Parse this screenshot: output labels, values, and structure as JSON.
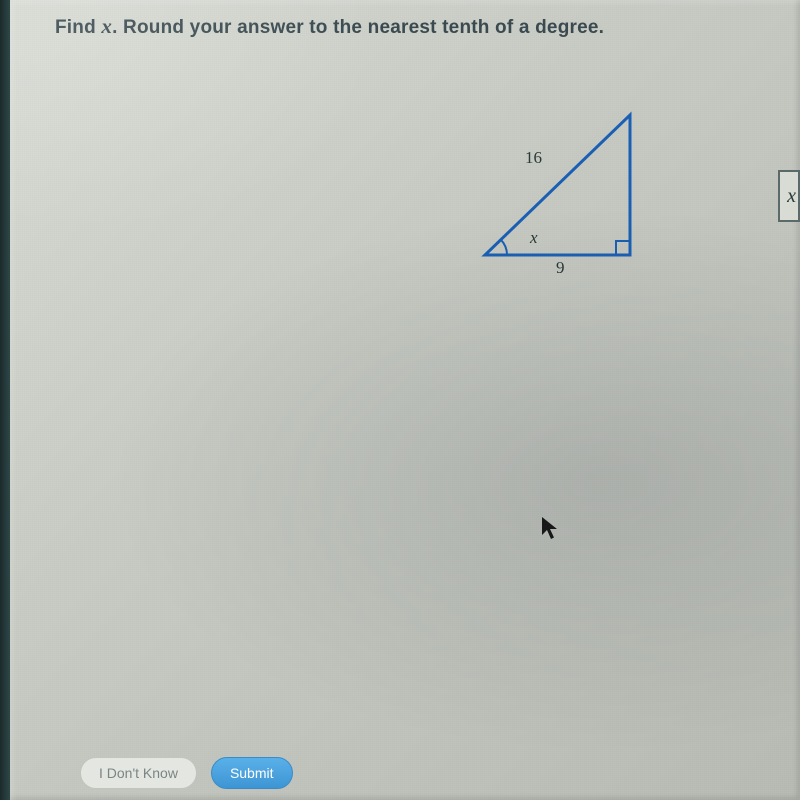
{
  "question": {
    "prefix": "Find ",
    "variable": "x",
    "suffix": ". Round your answer to the nearest tenth of a degree."
  },
  "triangle": {
    "type": "right-triangle-diagram",
    "stroke_color": "#1a5fb4",
    "stroke_width": 3,
    "vertices": {
      "A": [
        15,
        145
      ],
      "B": [
        160,
        145
      ],
      "C": [
        160,
        5
      ]
    },
    "right_angle_at": "B",
    "right_angle_marker_size": 14,
    "angle_marker_at": "A",
    "angle_marker_radius": 22,
    "labels": {
      "hypotenuse": "16",
      "base": "9",
      "angle": "x"
    },
    "label_color": "#2a3a3a",
    "label_fontsize": 17
  },
  "answer_box": {
    "label": "x"
  },
  "buttons": {
    "idk": "I Don't Know",
    "submit": "Submit"
  },
  "colors": {
    "screen_bg": "#d8dcd4",
    "text": "#3a4a50",
    "submit_bg_top": "#5ab0e8",
    "submit_bg_bottom": "#3d95d4",
    "idk_bg": "#e4e7e1",
    "idk_text": "#7a8585"
  }
}
